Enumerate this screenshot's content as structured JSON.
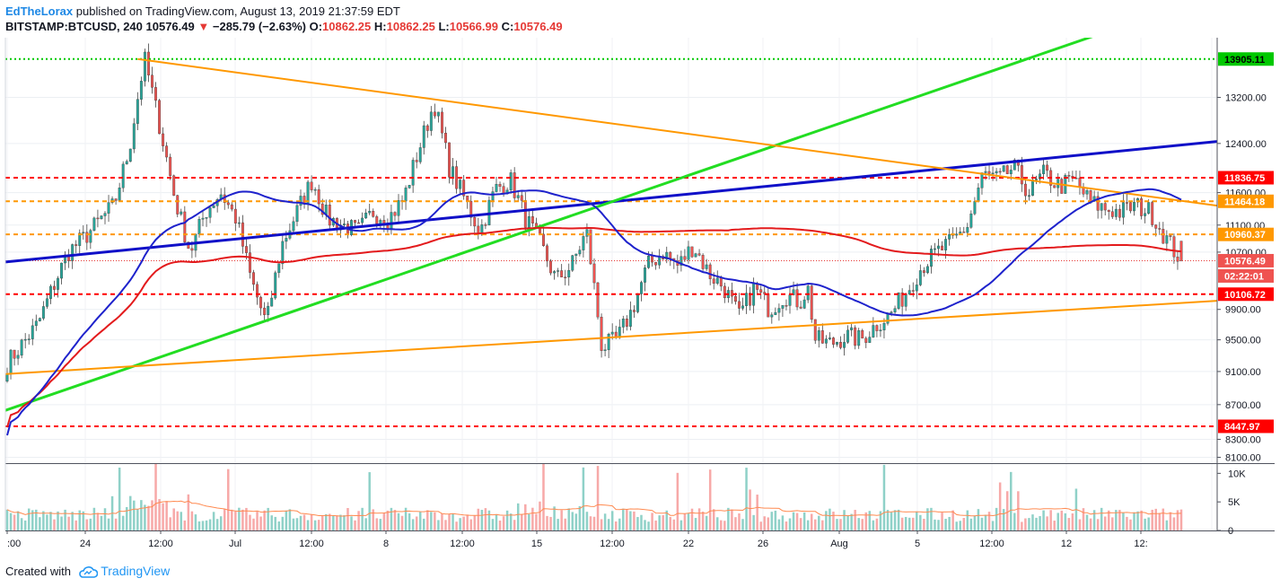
{
  "header": {
    "author": "EdTheLorax",
    "published_text": "published on TradingView.com, August 13, 2019 21:37:59 EDT",
    "symbol": "BITSTAMP:BTCUSD, 240",
    "last": "10576.49",
    "change_arrow": "▼",
    "change": "−285.79 (−2.63%)",
    "o_label": "O:",
    "o": "10862.25",
    "h_label": "H:",
    "h": "10862.25",
    "l_label": "L:",
    "l": "10566.99",
    "c_label": "C:",
    "c": "10576.49"
  },
  "footer": {
    "created_with": "Created with",
    "brand": "TradingView",
    "icon": "tradingview-cloud-icon"
  },
  "colors": {
    "up": "#26a69a",
    "down": "#ef5350",
    "ma_fast": "#1e22cc",
    "ma_slow": "#e31a1c",
    "trend_blue": "#1010c8",
    "trend_green": "#22dd22",
    "trend_orange": "#ff9800",
    "level_red": "#ff0000",
    "level_green": "#00c800",
    "level_orange": "#ff9800"
  },
  "chart_data": {
    "type": "candlestick",
    "y_axis_ticks": [
      "13200.00",
      "12400.00",
      "11600.00",
      "11100.00",
      "10700.00",
      "9900.00",
      "9500.00",
      "9100.00",
      "8700.00",
      "8300.00",
      "8100.00"
    ],
    "y_axis_scale": "log",
    "ylim": [
      8100,
      14300
    ],
    "x_axis_ticks": [
      ":00",
      "24",
      "12:00",
      "Jul",
      "12:00",
      "8",
      "12:00",
      "15",
      "12:00",
      "22",
      "26",
      "Aug",
      "5",
      "12:00",
      "12",
      "12:"
    ],
    "horizontal_levels": [
      {
        "value": 13905.11,
        "label": "13905.11",
        "color": "green",
        "style": "dotted"
      },
      {
        "value": 11836.75,
        "label": "11836.75",
        "color": "red",
        "style": "dashed"
      },
      {
        "value": 11464.18,
        "label": "11464.18",
        "color": "orange",
        "style": "dashed"
      },
      {
        "value": 10960.37,
        "label": "10960.37",
        "color": "orange",
        "style": "dashed"
      },
      {
        "value": 10106.72,
        "label": "10106.72",
        "color": "red",
        "style": "dashed"
      },
      {
        "value": 8447.97,
        "label": "8447.97",
        "color": "red",
        "style": "dashed"
      }
    ],
    "last_price_label": "10576.49",
    "countdown_label": "02:22:01",
    "close_path": [
      [
        0,
        9200
      ],
      [
        4,
        9700
      ],
      [
        8,
        10700
      ],
      [
        10,
        10900
      ],
      [
        14,
        11400
      ],
      [
        16,
        12300
      ],
      [
        18,
        13905
      ],
      [
        20,
        12700
      ],
      [
        22,
        11500
      ],
      [
        24,
        10700
      ],
      [
        26,
        11300
      ],
      [
        28,
        11600
      ],
      [
        30,
        11200
      ],
      [
        32,
        10300
      ],
      [
        34,
        9700
      ],
      [
        36,
        10800
      ],
      [
        38,
        11300
      ],
      [
        40,
        11800
      ],
      [
        42,
        11200
      ],
      [
        44,
        11100
      ],
      [
        46,
        11000
      ],
      [
        48,
        11300
      ],
      [
        50,
        11200
      ],
      [
        52,
        11500
      ],
      [
        54,
        12300
      ],
      [
        56,
        13100
      ],
      [
        58,
        12000
      ],
      [
        60,
        11500
      ],
      [
        62,
        11000
      ],
      [
        64,
        11650
      ],
      [
        66,
        11800
      ],
      [
        68,
        11200
      ],
      [
        70,
        10800
      ],
      [
        72,
        10300
      ],
      [
        74,
        10500
      ],
      [
        76,
        11000
      ],
      [
        78,
        9400
      ],
      [
        80,
        9500
      ],
      [
        82,
        9900
      ],
      [
        84,
        10500
      ],
      [
        86,
        10700
      ],
      [
        88,
        10500
      ],
      [
        90,
        10800
      ],
      [
        92,
        10400
      ],
      [
        94,
        10200
      ],
      [
        96,
        9800
      ],
      [
        98,
        10200
      ],
      [
        100,
        9900
      ],
      [
        102,
        10100
      ],
      [
        104,
        10000
      ],
      [
        105,
        10200
      ],
      [
        106,
        9500
      ],
      [
        108,
        9450
      ],
      [
        110,
        9550
      ],
      [
        112,
        9500
      ],
      [
        114,
        9700
      ],
      [
        116,
        9850
      ],
      [
        118,
        10150
      ],
      [
        120,
        10500
      ],
      [
        122,
        10700
      ],
      [
        124,
        10850
      ],
      [
        126,
        11100
      ],
      [
        128,
        11900
      ],
      [
        130,
        11800
      ],
      [
        132,
        12000
      ],
      [
        134,
        11600
      ],
      [
        136,
        11900
      ],
      [
        138,
        11700
      ],
      [
        140,
        11800
      ],
      [
        142,
        11450
      ],
      [
        144,
        11350
      ],
      [
        146,
        11300
      ],
      [
        148,
        11400
      ],
      [
        150,
        11300
      ],
      [
        152,
        10900
      ],
      [
        154,
        10576
      ]
    ],
    "volume_axis_ticks": [
      "10K",
      "5K",
      "0"
    ]
  }
}
